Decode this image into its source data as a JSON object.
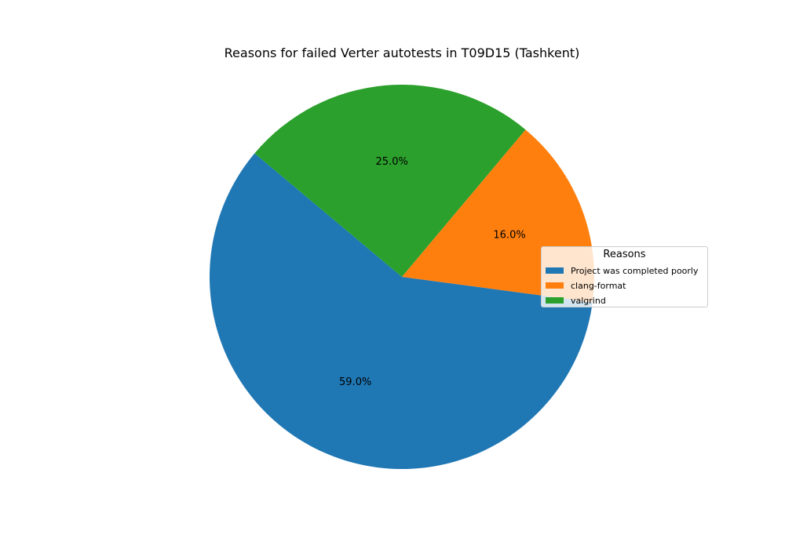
{
  "chart_data": {
    "type": "pie",
    "title": "Reasons for failed Verter autotests in T09D15 (Tashkent)",
    "legend_title": "Reasons",
    "legend_position": "center-right",
    "categories": [
      "Project was completed poorly",
      "clang-format",
      "valgrind"
    ],
    "values": [
      59.0,
      16.0,
      25.0
    ],
    "labels": [
      "59.0%",
      "16.0%",
      "25.0%"
    ],
    "colors": [
      "#1f77b4",
      "#ff7f0e",
      "#2ca02c"
    ]
  }
}
